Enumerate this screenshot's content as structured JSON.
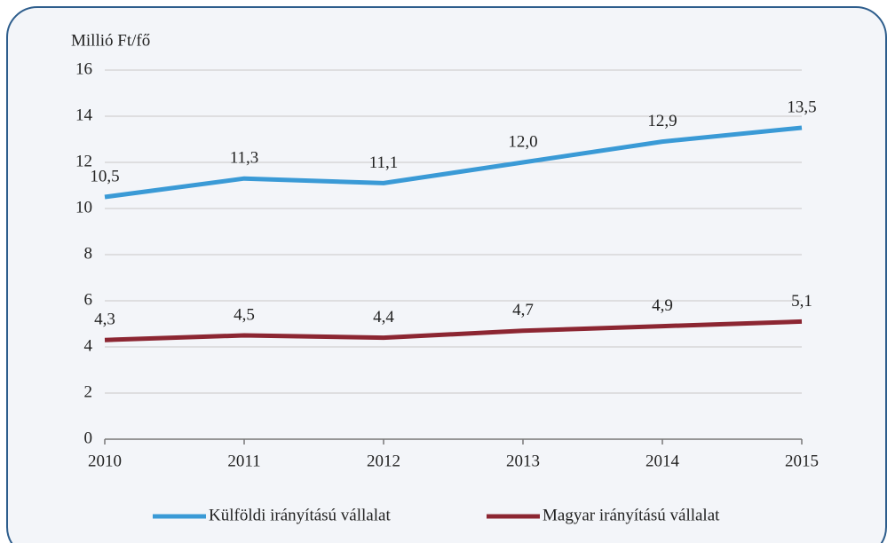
{
  "chart_data": {
    "type": "line",
    "y_axis_label": "Millió Ft/fő",
    "categories": [
      "2010",
      "2011",
      "2012",
      "2013",
      "2014",
      "2015"
    ],
    "series": [
      {
        "name": "Külföldi irányítású vállalat",
        "color": "#3a9ad6",
        "values": [
          10.5,
          11.3,
          11.1,
          12.0,
          12.9,
          13.5
        ],
        "value_labels": [
          "10,5",
          "11,3",
          "11,1",
          "12,0",
          "12,9",
          "13,5"
        ]
      },
      {
        "name": "Magyar irányítású vállalat",
        "color": "#8c2632",
        "values": [
          4.3,
          4.5,
          4.4,
          4.7,
          4.9,
          5.1
        ],
        "value_labels": [
          "4,3",
          "4,5",
          "4,4",
          "4,7",
          "4,9",
          "5,1"
        ]
      }
    ],
    "ylim": [
      0,
      16
    ],
    "yticks": [
      0,
      2,
      4,
      6,
      8,
      10,
      12,
      14,
      16
    ],
    "grid": true,
    "legend": "bottom"
  }
}
